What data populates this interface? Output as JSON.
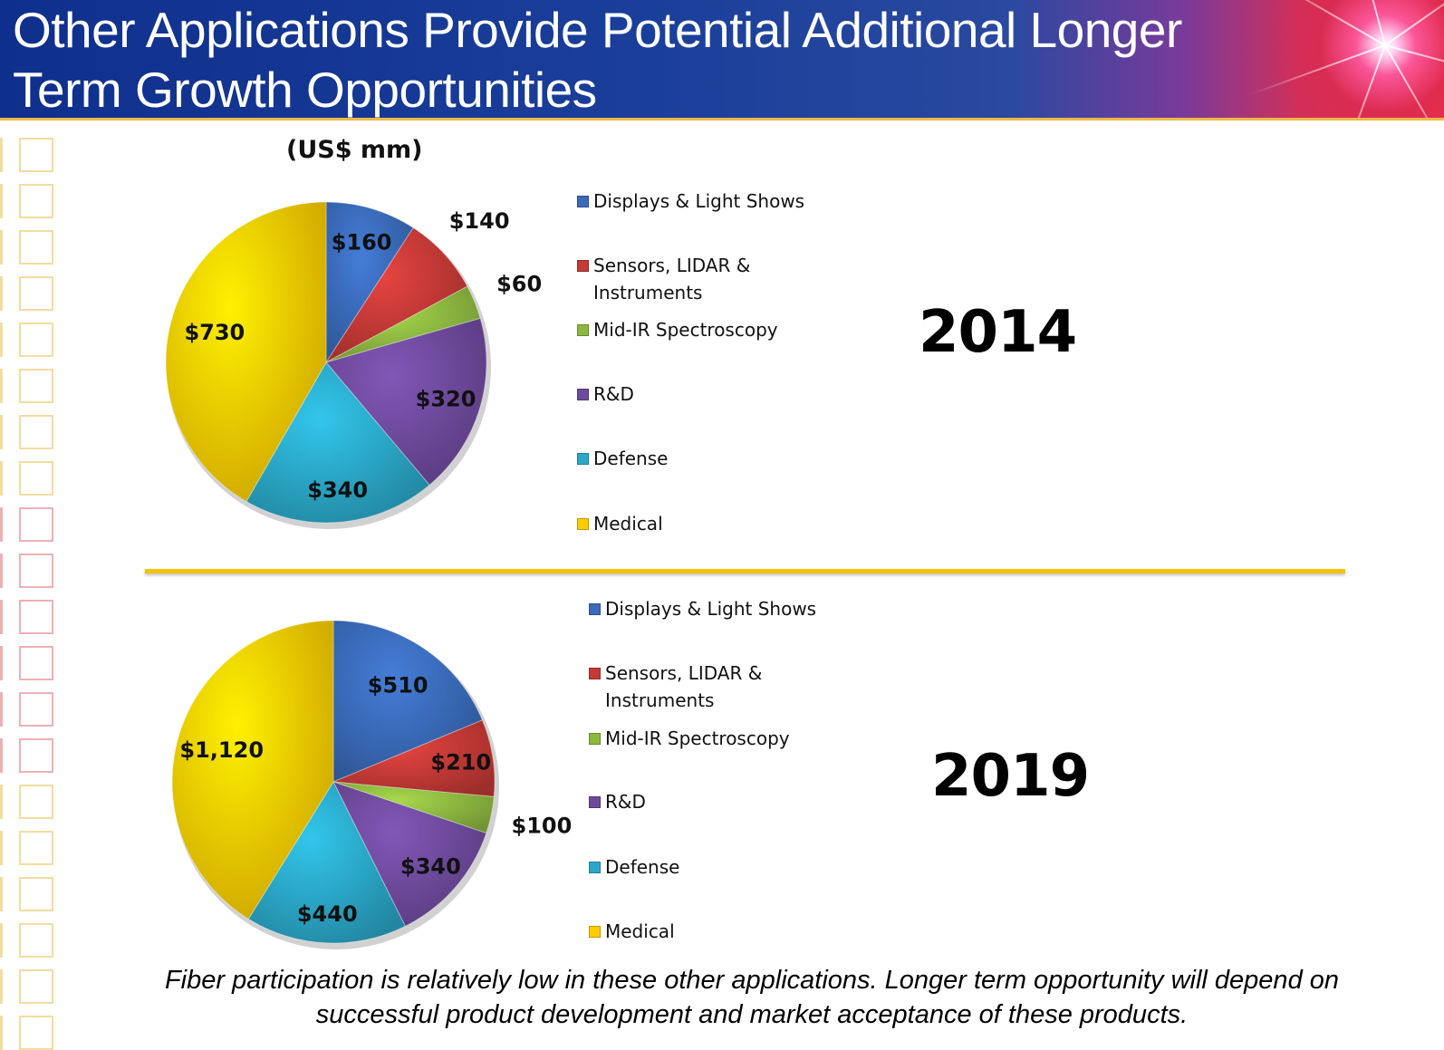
{
  "slide": {
    "title": "Other Applications Provide Potential Additional Longer Term Growth Opportunities",
    "unit_label": "(US$ mm)",
    "footnote": "Fiber participation is relatively low in these other applications.  Longer term opportunity will depend on successful product development and market acceptance of these products."
  },
  "legend": {
    "items": [
      {
        "label": "Displays & Light Shows",
        "color": "#3a6ab8"
      },
      {
        "label": "Sensors, LIDAR & Instruments",
        "color": "#c43a36"
      },
      {
        "label": "Mid-IR Spectroscopy",
        "color": "#8db840"
      },
      {
        "label": "R&D",
        "color": "#6e4a9c"
      },
      {
        "label": "Defense",
        "color": "#2aa8c8"
      },
      {
        "label": "Medical",
        "color": "#ffcc00"
      }
    ]
  },
  "chart_data": [
    {
      "type": "pie",
      "title": "2014",
      "categories": [
        "Displays & Light Shows",
        "Sensors, LIDAR & Instruments",
        "Mid-IR Spectroscopy",
        "R&D",
        "Defense",
        "Medical"
      ],
      "values": [
        160,
        140,
        60,
        320,
        340,
        730
      ],
      "data_labels": [
        "$160",
        "$140",
        "$60",
        "$320",
        "$340",
        "$730"
      ],
      "unit": "US$ mm"
    },
    {
      "type": "pie",
      "title": "2019",
      "categories": [
        "Displays & Light Shows",
        "Sensors, LIDAR & Instruments",
        "Mid-IR Spectroscopy",
        "R&D",
        "Defense",
        "Medical"
      ],
      "values": [
        510,
        210,
        100,
        340,
        440,
        1120
      ],
      "data_labels": [
        "$510",
        "$210",
        "$100",
        "$340",
        "$440",
        "$1,120"
      ],
      "unit": "US$ mm"
    }
  ]
}
